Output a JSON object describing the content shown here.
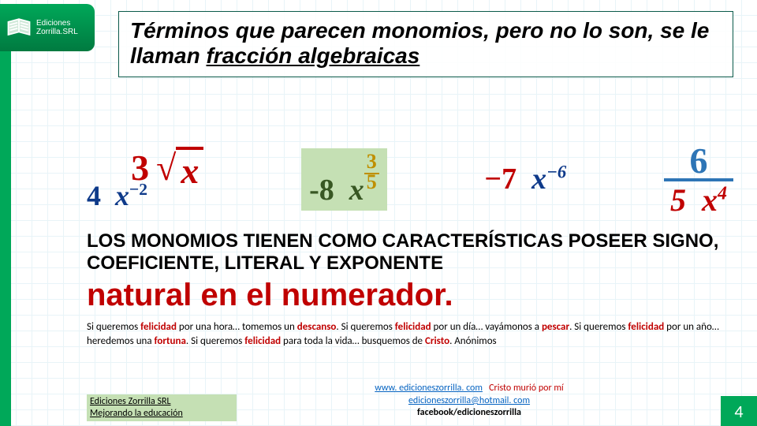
{
  "page_number": "4",
  "logo": {
    "line1": "Ediciones",
    "line2": "Zorrilla.SRL"
  },
  "colors": {
    "green": "#00a859",
    "red": "#c00000",
    "blue": "#0e3a8a"
  },
  "title": {
    "part1": "Términos que parecen monomios, pero no lo son, se le llaman ",
    "part2": "fracción algebraicas"
  },
  "formulas": {
    "f1": {
      "coef_a": "4",
      "var_a": "x",
      "exp_a": "−2",
      "coef_b": "3",
      "sqrt_arg": "x"
    },
    "f2": {
      "coef": "-8",
      "var": "x",
      "exp_num": "3",
      "exp_den": "5"
    },
    "f3": {
      "coef": "−7",
      "var": "x",
      "exp": "−6"
    },
    "f4": {
      "num": "6",
      "den_coef": "5",
      "den_var": "x",
      "den_exp": "4"
    }
  },
  "char_line": "LOS MONOMIOS TIENEN COMO CARACTERÍSTICAS POSEER SIGNO, COEFICIENTE, LITERAL Y EXPONENTE",
  "natural": "natural en el numerador.",
  "quote": {
    "text": "Si queremos <b>felicidad</b> por una hora… tomemos un <b>descanso</b>. Si queremos <b>felicidad</b> por un día… vayámonos a <b>pescar</b>. Si queremos <b>felicidad</b> por un año… heredemos una <b>fortuna</b>. Si queremos <b>felicidad</b> para toda la vida… busquemos de <b>Cristo</b>. Anónimos"
  },
  "footer_left": {
    "l1": "Ediciones Zorrilla SRL",
    "l2": "Mejorando la educación"
  },
  "footer_mid": {
    "url": "www. edicioneszorrilla. com",
    "tag": "Cristo murió por mí",
    "email": "edicioneszorrilla@hotmail. com",
    "fb": "facebook/edicioneszorrilla"
  }
}
